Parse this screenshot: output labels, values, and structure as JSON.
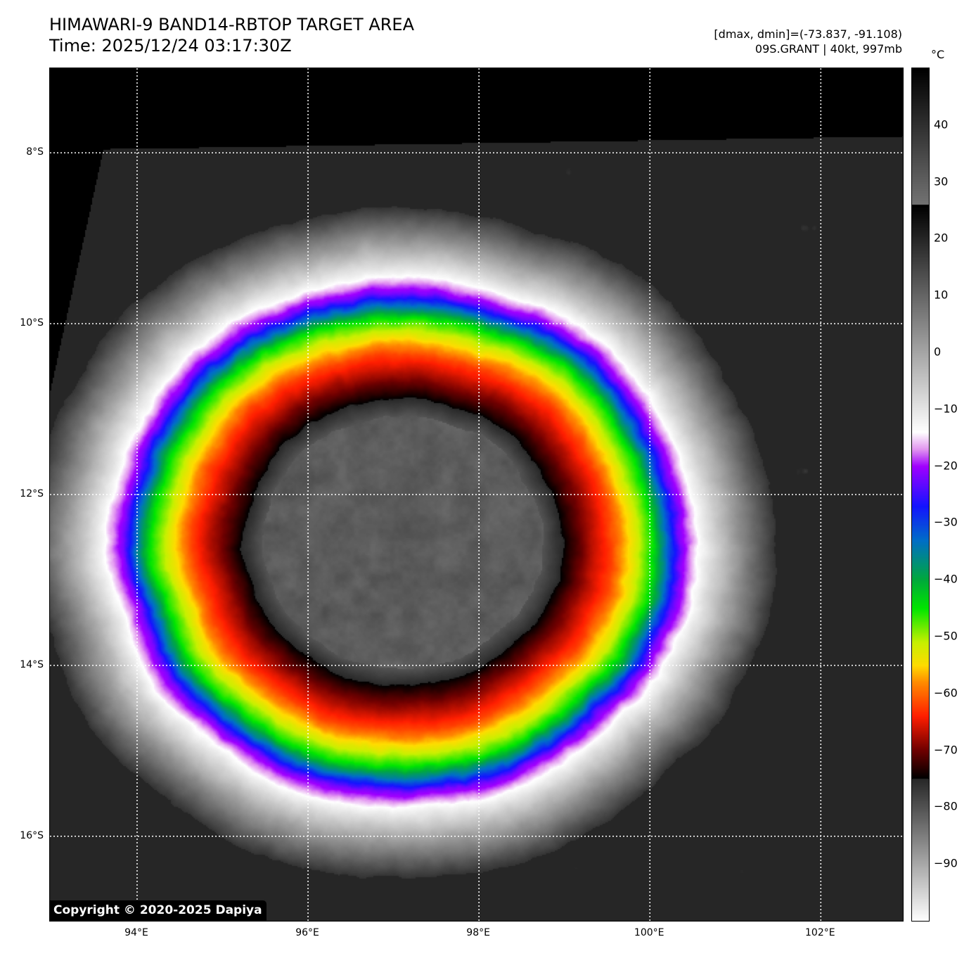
{
  "header": {
    "title": "HIMAWARI-9 BAND14-RBTOP TARGET AREA",
    "time": "Time: 2025/12/24 03:17:30Z",
    "dmax_dmin": "[dmax, dmin]=(-73.837, -91.108)",
    "storm": "09S.GRANT | 40kt, 997mb"
  },
  "map": {
    "extent_lon": [
      92.98,
      102.96
    ],
    "extent_lat": [
      -16.99,
      -7.01
    ],
    "lon_ticks": [
      {
        "v": 94,
        "label": "94°E"
      },
      {
        "v": 96,
        "label": "96°E"
      },
      {
        "v": 98,
        "label": "98°E"
      },
      {
        "v": 100,
        "label": "100°E"
      },
      {
        "v": 102,
        "label": "102°E"
      }
    ],
    "lat_ticks": [
      {
        "v": -8,
        "label": "8°S"
      },
      {
        "v": -10,
        "label": "10°S"
      },
      {
        "v": -12,
        "label": "12°S"
      },
      {
        "v": -14,
        "label": "14°S"
      },
      {
        "v": -16,
        "label": "16°S"
      }
    ],
    "copyright": "Copyright © 2020-2025 Dapiya"
  },
  "colorbar": {
    "unit": "°C",
    "range": [
      -100,
      50
    ],
    "ticks": [
      {
        "v": 40,
        "label": "40"
      },
      {
        "v": 30,
        "label": "30"
      },
      {
        "v": 20,
        "label": "20"
      },
      {
        "v": 10,
        "label": "10"
      },
      {
        "v": 0,
        "label": "0"
      },
      {
        "v": -10,
        "label": "−10"
      },
      {
        "v": -20,
        "label": "−20"
      },
      {
        "v": -30,
        "label": "−30"
      },
      {
        "v": -40,
        "label": "−40"
      },
      {
        "v": -50,
        "label": "−50"
      },
      {
        "v": -60,
        "label": "−60"
      },
      {
        "v": -70,
        "label": "−70"
      },
      {
        "v": -80,
        "label": "−80"
      },
      {
        "v": -90,
        "label": "−90"
      }
    ],
    "stops": [
      [
        50,
        "#000000"
      ],
      [
        26.1,
        "#737373"
      ],
      [
        26,
        "#000000"
      ],
      [
        -14,
        "#ffffff"
      ],
      [
        -17,
        "#e296f0"
      ],
      [
        -20,
        "#a000ff"
      ],
      [
        -27,
        "#1414ff"
      ],
      [
        -33,
        "#006ec8"
      ],
      [
        -40,
        "#00aa3c"
      ],
      [
        -45,
        "#00e600"
      ],
      [
        -51,
        "#c8f000"
      ],
      [
        -55,
        "#ffdc00"
      ],
      [
        -58,
        "#ff8c00"
      ],
      [
        -64,
        "#ff1e00"
      ],
      [
        -70,
        "#6e0000"
      ],
      [
        -74.9,
        "#000000"
      ],
      [
        -75,
        "#282828"
      ],
      [
        -100,
        "#ffffff"
      ]
    ]
  }
}
